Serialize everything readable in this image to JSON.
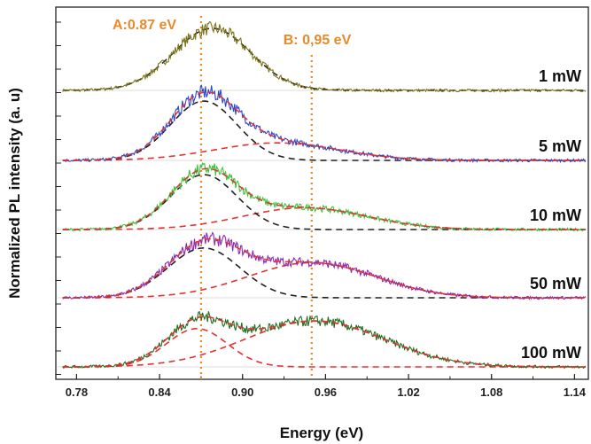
{
  "chart_data": {
    "type": "line",
    "xlabel": "Energy (eV)",
    "ylabel": "Normalized PL intensity (a. u)",
    "xlim": [
      0.765,
      1.15
    ],
    "x_ticks": [
      "0.78",
      "0.84",
      "0.90",
      "0.96",
      "1.02",
      "1.08",
      "1.14"
    ],
    "x_tick_values": [
      0.78,
      0.84,
      0.9,
      0.96,
      1.02,
      1.08,
      1.14
    ],
    "y_tick_labels_shown": false,
    "grid": false,
    "peak_markers": [
      {
        "label": "A:0.87 eV",
        "energy": 0.87,
        "color": "#e8892a"
      },
      {
        "label": "B: 0,95 eV",
        "energy": 0.95,
        "color": "#e8892a"
      }
    ],
    "panels": [
      {
        "label": "1 mW",
        "data_color": "#7d7318",
        "peakA": {
          "center": 0.878,
          "width": 0.028,
          "amp": 1.0
        },
        "peakB": {
          "center": 0.95,
          "width": 0.04,
          "amp": 0.0
        }
      },
      {
        "label": "5 mW",
        "data_color": "#2b46c8",
        "peakA": {
          "center": 0.872,
          "width": 0.024,
          "amp": 0.88
        },
        "peakB": {
          "center": 0.925,
          "width": 0.045,
          "amp": 0.26
        }
      },
      {
        "label": "10 mW",
        "data_color": "#3bc43b",
        "peakA": {
          "center": 0.872,
          "width": 0.024,
          "amp": 0.86
        },
        "peakB": {
          "center": 0.945,
          "width": 0.045,
          "amp": 0.34
        }
      },
      {
        "label": "50 mW",
        "data_color": "#8a2ab0",
        "peakA": {
          "center": 0.872,
          "width": 0.026,
          "amp": 0.78
        },
        "peakB": {
          "center": 0.95,
          "width": 0.046,
          "amp": 0.55
        }
      },
      {
        "label": "100 mW",
        "data_color": "#1f6e1f",
        "peakA": {
          "center": 0.867,
          "width": 0.022,
          "amp": 0.6
        },
        "peakB": {
          "center": 0.952,
          "width": 0.05,
          "amp": 0.72
        }
      }
    ]
  }
}
